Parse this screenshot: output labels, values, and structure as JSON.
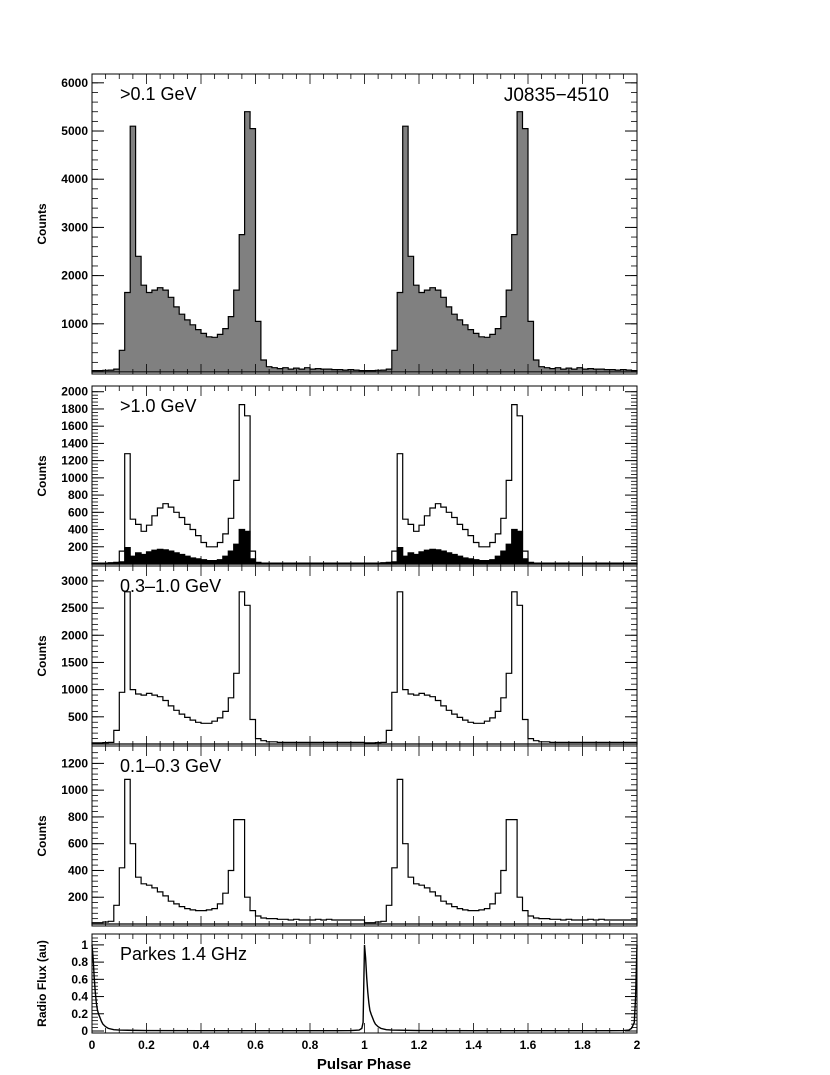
{
  "figure": {
    "source_label": "J0835−4510",
    "xlabel": "Pulsar Phase"
  },
  "chart_data": [
    {
      "type": "step-histogram",
      "label": ">0.1 GeV",
      "ylabel": "Counts",
      "xlim": [
        0,
        2
      ],
      "ylim": [
        0,
        6100
      ],
      "yticks": [
        1000,
        2000,
        3000,
        4000,
        5000,
        6000
      ],
      "fill": "#808080",
      "series": [
        {
          "name": "",
          "x": [
            0.0,
            0.02,
            0.04,
            0.06,
            0.08,
            0.1,
            0.12,
            0.14,
            0.16,
            0.18,
            0.2,
            0.22,
            0.24,
            0.26,
            0.28,
            0.3,
            0.32,
            0.34,
            0.36,
            0.38,
            0.4,
            0.42,
            0.44,
            0.46,
            0.48,
            0.5,
            0.52,
            0.54,
            0.56,
            0.58,
            0.6,
            0.62,
            0.64,
            0.66,
            0.68,
            0.7,
            0.72,
            0.74,
            0.76,
            0.78,
            0.8,
            0.82,
            0.84,
            0.86,
            0.88,
            0.9,
            0.92,
            0.94,
            0.96,
            0.98,
            1.0
          ],
          "y": [
            30,
            30,
            35,
            40,
            60,
            450,
            1650,
            5100,
            2400,
            1800,
            1650,
            1700,
            1750,
            1700,
            1550,
            1350,
            1200,
            1080,
            980,
            880,
            800,
            730,
            720,
            780,
            900,
            1150,
            1700,
            2850,
            5400,
            5050,
            1050,
            250,
            110,
            90,
            70,
            90,
            60,
            80,
            60,
            90,
            60,
            70,
            60,
            60,
            50,
            50,
            40,
            50,
            40,
            30
          ]
        }
      ]
    },
    {
      "type": "step-histogram",
      "label": ">1.0 GeV",
      "ylabel": "Counts",
      "xlim": [
        0,
        2
      ],
      "ylim": [
        0,
        2020
      ],
      "yticks": [
        200,
        400,
        600,
        800,
        1000,
        1200,
        1400,
        1600,
        1800,
        2000
      ],
      "series": [
        {
          "name": "",
          "x": [
            0.0,
            0.02,
            0.04,
            0.06,
            0.08,
            0.1,
            0.12,
            0.14,
            0.16,
            0.18,
            0.2,
            0.22,
            0.24,
            0.26,
            0.28,
            0.3,
            0.32,
            0.34,
            0.36,
            0.38,
            0.4,
            0.42,
            0.44,
            0.46,
            0.48,
            0.5,
            0.52,
            0.54,
            0.56,
            0.58,
            0.6,
            0.62,
            0.64,
            0.66,
            0.68,
            0.7,
            0.72,
            0.74,
            0.76,
            0.78,
            0.8,
            0.82,
            0.84,
            0.86,
            0.88,
            0.9,
            0.92,
            0.94,
            0.96,
            0.98,
            1.0
          ],
          "y": [
            10,
            10,
            10,
            15,
            20,
            150,
            1280,
            520,
            460,
            380,
            450,
            560,
            650,
            700,
            660,
            600,
            540,
            460,
            400,
            330,
            250,
            200,
            200,
            250,
            350,
            530,
            970,
            1850,
            1720,
            150,
            20,
            10,
            10,
            10,
            10,
            10,
            10,
            10,
            10,
            10,
            10,
            10,
            10,
            10,
            10,
            10,
            10,
            10,
            10,
            10
          ]
        },
        {
          "name": "",
          "x": [
            0.0,
            0.02,
            0.04,
            0.06,
            0.08,
            0.1,
            0.12,
            0.14,
            0.16,
            0.18,
            0.2,
            0.22,
            0.24,
            0.26,
            0.28,
            0.3,
            0.32,
            0.34,
            0.36,
            0.38,
            0.4,
            0.42,
            0.44,
            0.46,
            0.48,
            0.5,
            0.52,
            0.54,
            0.56,
            0.58,
            0.6,
            0.62,
            0.64,
            0.66,
            0.68,
            0.7,
            0.72,
            0.74,
            0.76,
            0.78,
            0.8,
            0.82,
            0.84,
            0.86,
            0.88,
            0.9,
            0.92,
            0.94,
            0.96,
            0.98,
            1.0
          ],
          "y": [
            5,
            5,
            5,
            5,
            10,
            25,
            190,
            90,
            130,
            110,
            140,
            160,
            170,
            165,
            150,
            130,
            110,
            90,
            70,
            60,
            50,
            40,
            40,
            50,
            90,
            150,
            230,
            400,
            380,
            60,
            10,
            5,
            5,
            5,
            5,
            5,
            5,
            5,
            5,
            5,
            5,
            5,
            5,
            5,
            5,
            5,
            5,
            5,
            5,
            5
          ]
        }
      ]
    },
    {
      "type": "step-histogram",
      "label": "0.3–1.0 GeV",
      "ylabel": "Counts",
      "xlim": [
        0,
        2
      ],
      "ylim": [
        0,
        3200
      ],
      "yticks": [
        500,
        1000,
        1500,
        2000,
        2500,
        3000
      ],
      "series": [
        {
          "name": "",
          "x": [
            0.0,
            0.02,
            0.04,
            0.06,
            0.08,
            0.1,
            0.12,
            0.14,
            0.16,
            0.18,
            0.2,
            0.22,
            0.24,
            0.26,
            0.28,
            0.3,
            0.32,
            0.34,
            0.36,
            0.38,
            0.4,
            0.42,
            0.44,
            0.46,
            0.48,
            0.5,
            0.52,
            0.54,
            0.56,
            0.58,
            0.6,
            0.62,
            0.64,
            0.66,
            0.68,
            0.7,
            0.72,
            0.74,
            0.76,
            0.78,
            0.8,
            0.82,
            0.84,
            0.86,
            0.88,
            0.9,
            0.92,
            0.94,
            0.96,
            0.98,
            1.0
          ],
          "y": [
            20,
            20,
            25,
            30,
            250,
            950,
            2800,
            1000,
            920,
            900,
            930,
            900,
            870,
            800,
            700,
            620,
            550,
            490,
            440,
            400,
            380,
            380,
            420,
            480,
            600,
            850,
            1300,
            2800,
            2550,
            450,
            100,
            60,
            40,
            40,
            30,
            30,
            30,
            30,
            30,
            30,
            30,
            30,
            30,
            30,
            30,
            30,
            30,
            30,
            30,
            30
          ]
        }
      ]
    },
    {
      "type": "step-histogram",
      "label": "0.1–0.3 GeV",
      "ylabel": "Counts",
      "xlim": [
        0,
        2
      ],
      "ylim": [
        0,
        1300
      ],
      "yticks": [
        200,
        400,
        600,
        800,
        1000,
        1200
      ],
      "series": [
        {
          "name": "",
          "x": [
            0.0,
            0.02,
            0.04,
            0.06,
            0.08,
            0.1,
            0.12,
            0.14,
            0.16,
            0.18,
            0.2,
            0.22,
            0.24,
            0.26,
            0.28,
            0.3,
            0.32,
            0.34,
            0.36,
            0.38,
            0.4,
            0.42,
            0.44,
            0.46,
            0.48,
            0.5,
            0.52,
            0.54,
            0.56,
            0.58,
            0.6,
            0.62,
            0.64,
            0.66,
            0.68,
            0.7,
            0.72,
            0.74,
            0.76,
            0.78,
            0.8,
            0.82,
            0.84,
            0.86,
            0.88,
            0.9,
            0.92,
            0.94,
            0.96,
            0.98,
            1.0
          ],
          "y": [
            10,
            10,
            15,
            20,
            140,
            420,
            1080,
            600,
            350,
            300,
            290,
            270,
            240,
            210,
            170,
            150,
            130,
            115,
            105,
            100,
            100,
            105,
            115,
            150,
            230,
            400,
            780,
            780,
            200,
            100,
            60,
            45,
            40,
            40,
            35,
            35,
            30,
            35,
            30,
            30,
            30,
            35,
            30,
            35,
            30,
            30,
            30,
            30,
            30,
            30
          ]
        }
      ]
    },
    {
      "type": "line",
      "label": "Parkes 1.4 GHz",
      "ylabel": "Radio Flux (au)",
      "xlim": [
        0,
        2
      ],
      "ylim": [
        0,
        1.08
      ],
      "yticks": [
        0,
        0.2,
        0.4,
        0.6,
        0.8,
        1
      ],
      "xticks": [
        0,
        0.2,
        0.4,
        0.6,
        0.8,
        1,
        1.2,
        1.4,
        1.6,
        1.8,
        2
      ],
      "series": [
        {
          "name": "",
          "x": [
            0.0,
            0.004,
            0.008,
            0.012,
            0.016,
            0.02,
            0.025,
            0.03,
            0.035,
            0.04,
            0.05,
            0.06,
            0.08,
            0.1,
            0.2,
            0.4,
            0.6,
            0.8,
            0.9,
            0.95,
            0.98,
            0.99,
            0.995,
            1.0,
            1.004,
            1.008,
            1.012,
            1.016,
            1.02,
            1.025,
            1.03,
            1.035,
            1.04,
            1.05,
            1.06,
            1.08,
            1.1,
            1.2,
            1.4,
            1.6,
            1.8,
            1.9,
            1.95,
            1.97,
            1.98,
            1.99,
            1.995,
            2.0
          ],
          "y": [
            1.0,
            0.85,
            0.62,
            0.45,
            0.32,
            0.24,
            0.19,
            0.15,
            0.11,
            0.08,
            0.05,
            0.03,
            0.015,
            0.01,
            0.005,
            0.003,
            0.003,
            0.003,
            0.004,
            0.005,
            0.01,
            0.03,
            0.1,
            1.0,
            0.85,
            0.62,
            0.45,
            0.32,
            0.24,
            0.19,
            0.15,
            0.11,
            0.08,
            0.05,
            0.03,
            0.015,
            0.01,
            0.005,
            0.003,
            0.003,
            0.003,
            0.004,
            0.005,
            0.01,
            0.03,
            0.1,
            0.4,
            1.0
          ]
        }
      ]
    }
  ]
}
